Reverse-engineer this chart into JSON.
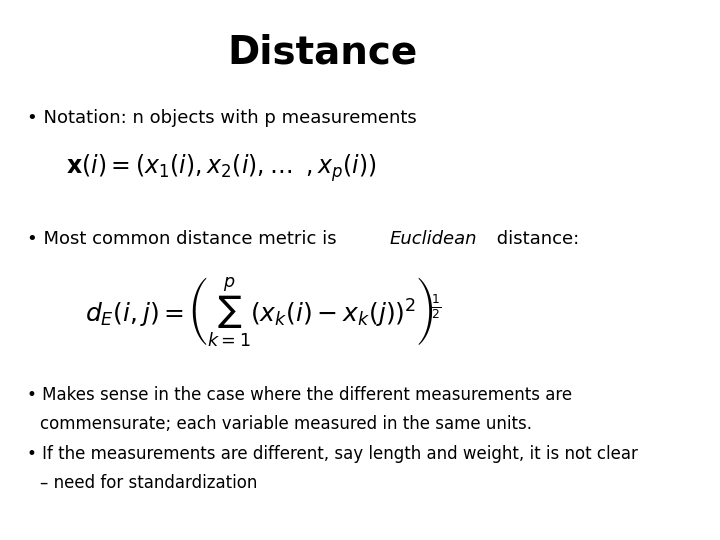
{
  "title": "Distance",
  "title_fontsize": 28,
  "title_fontweight": "bold",
  "background_color": "#ffffff",
  "text_color": "#000000",
  "bullet1_text": "Notation: n objects with p measurements",
  "bullet1_fontsize": 13,
  "formula1": "$\\mathbf{x}(i) = (x_1(i), x_2(i), \\ldots\\;\\;, x_p(i))$",
  "formula1_fontsize": 17,
  "bullet2_pre": "Most common distance metric is ",
  "bullet2_italic": "Euclidean",
  "bullet2_post": " distance:",
  "bullet2_fontsize": 13,
  "formula2": "$d_E(i,j) = \\left(\\sum_{k=1}^{p}(x_k(i) - x_k(j))^2\\right)^{\\!\\frac{1}{2}}$",
  "formula2_fontsize": 18,
  "bullet3_line1": "Makes sense in the case where the different measurements are",
  "bullet3_line2": "commensurate; each variable measured in the same units.",
  "bullet3_fontsize": 12,
  "bullet4_line1": "If the measurements are different, say length and weight, it is not clear",
  "bullet4_line2": "– need for standardization",
  "bullet4_fontsize": 12
}
